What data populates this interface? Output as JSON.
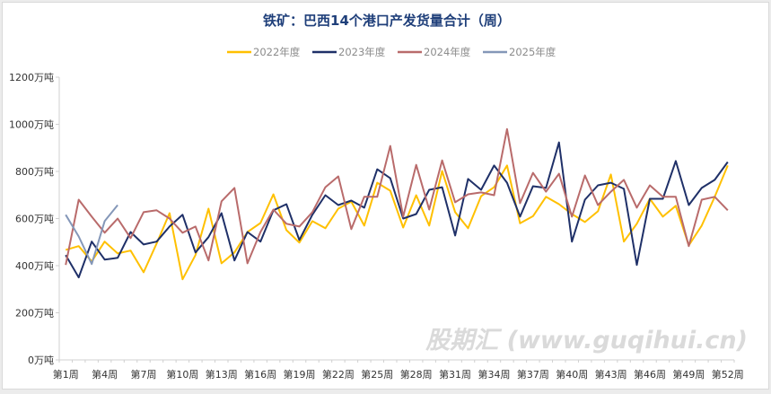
{
  "chart_data": {
    "type": "line",
    "title": "铁矿：巴西14个港口产发货量合计（周）",
    "xlabel": "",
    "ylabel": "",
    "ylim": [
      0,
      1200
    ],
    "yticks": [
      "0万吨",
      "200万吨",
      "400万吨",
      "600万吨",
      "800万吨",
      "1000万吨",
      "1200万吨"
    ],
    "ytick_values": [
      0,
      200,
      400,
      600,
      800,
      1000,
      1200
    ],
    "xtick_labels": [
      "第1周",
      "第4周",
      "第7周",
      "第10周",
      "第13周",
      "第16周",
      "第19周",
      "第22周",
      "第25周",
      "第28周",
      "第31周",
      "第34周",
      "第37周",
      "第40周",
      "第43周",
      "第46周",
      "第49周",
      "第52周"
    ],
    "x_weeks": 52,
    "grid": false,
    "legend_position": "top",
    "series": [
      {
        "name": "2022年度",
        "color": "#ffc000",
        "values": [
          467,
          483,
          418,
          502,
          452,
          464,
          372,
          494,
          623,
          342,
          445,
          642,
          410,
          456,
          543,
          581,
          703,
          551,
          498,
          589,
          559,
          642,
          672,
          570,
          752,
          718,
          562,
          699,
          570,
          802,
          627,
          559,
          695,
          733,
          825,
          580,
          610,
          692,
          661,
          619,
          585,
          631,
          787,
          502,
          578,
          684,
          608,
          654,
          486,
          570,
          692,
          825
        ]
      },
      {
        "name": "2023年度",
        "color": "#1f3068",
        "values": [
          445,
          350,
          502,
          426,
          433,
          543,
          490,
          502,
          566,
          616,
          456,
          521,
          623,
          422,
          543,
          502,
          635,
          661,
          509,
          616,
          699,
          657,
          676,
          646,
          809,
          771,
          600,
          619,
          722,
          733,
          528,
          768,
          722,
          825,
          752,
          608,
          737,
          730,
          923,
          502,
          680,
          741,
          752,
          726,
          403,
          684,
          684,
          844,
          657,
          730,
          764,
          840
        ]
      },
      {
        "name": "2024年度",
        "color": "#b96b6b",
        "values": [
          403,
          680,
          608,
          540,
          600,
          517,
          627,
          635,
          600,
          540,
          566,
          422,
          673,
          730,
          410,
          543,
          638,
          578,
          566,
          627,
          733,
          779,
          555,
          692,
          692,
          908,
          608,
          828,
          638,
          847,
          669,
          703,
          711,
          699,
          980,
          665,
          794,
          714,
          790,
          608,
          783,
          657,
          714,
          764,
          646,
          741,
          692,
          692,
          483,
          680,
          692,
          635
        ]
      },
      {
        "name": "2025年度",
        "color": "#8497b8",
        "values": [
          616,
          524,
          407,
          589,
          657
        ]
      }
    ]
  },
  "watermark": "股期汇 (www.guqihui.cn)"
}
